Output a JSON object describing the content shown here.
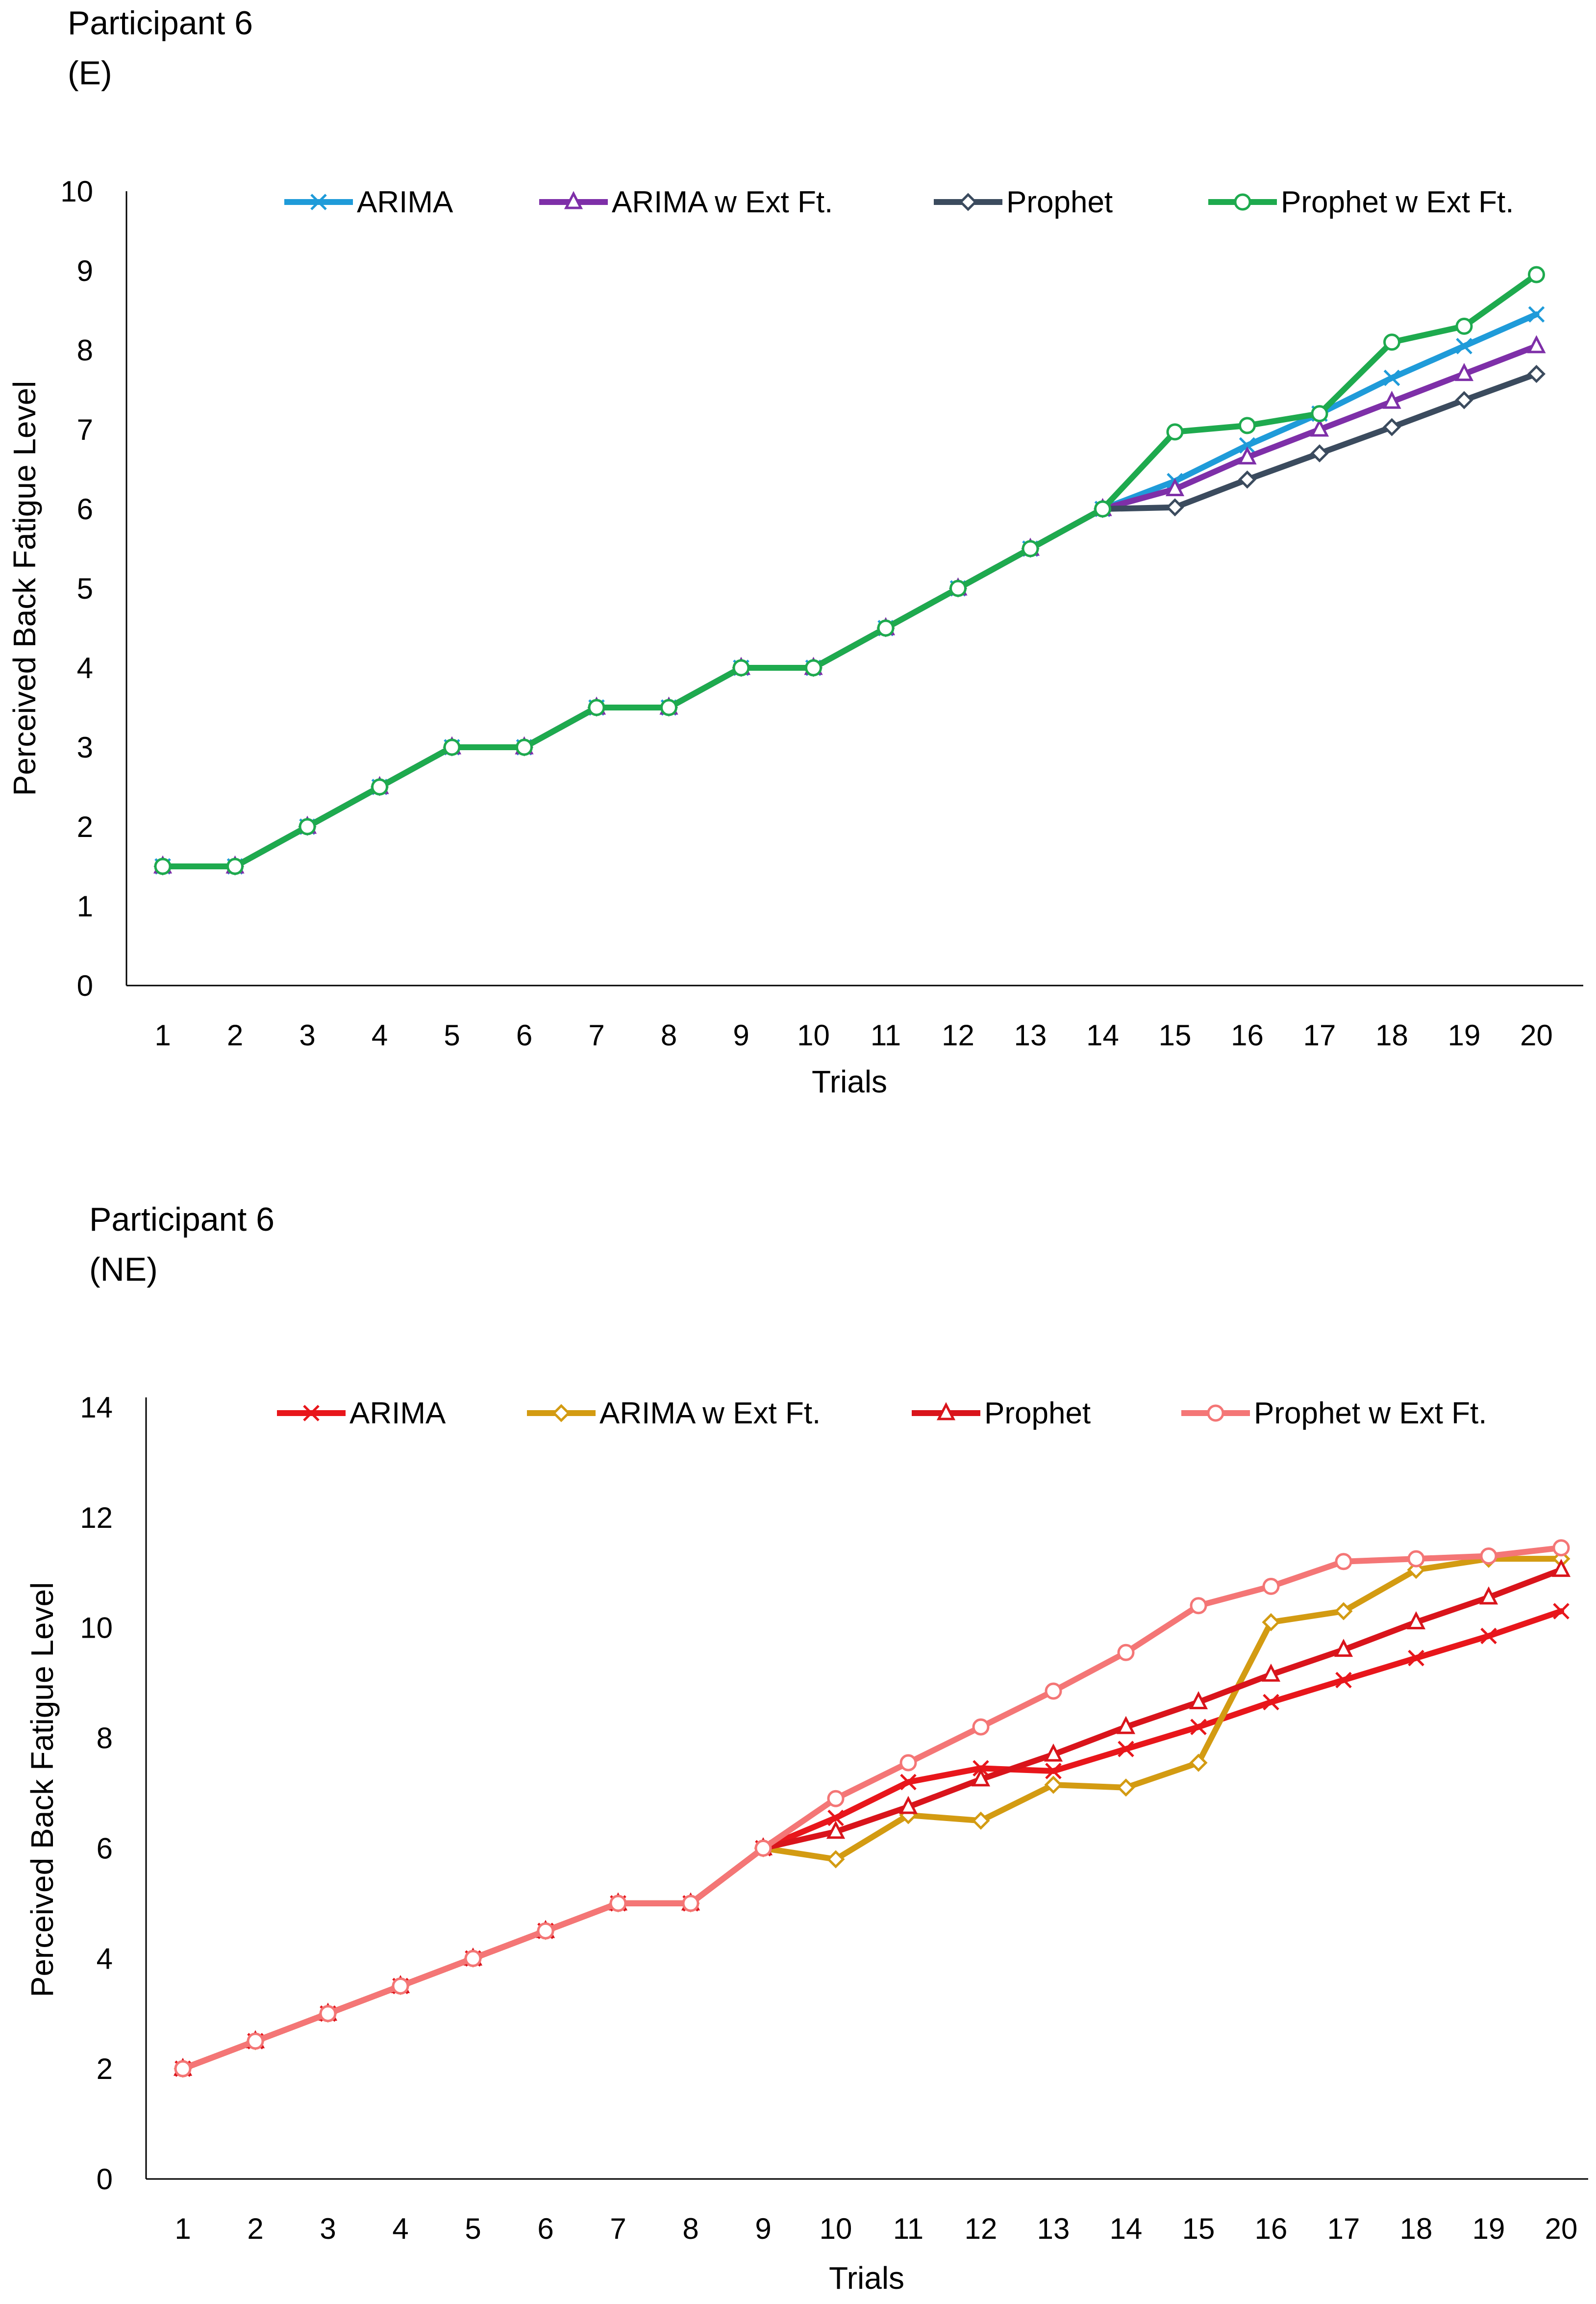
{
  "chart_data": [
    {
      "type": "line",
      "title": "Participant 6",
      "subtitle": "(E)",
      "xlabel": "Trials",
      "ylabel": "Perceived Back Fatigue Level",
      "ylim": [
        0,
        10
      ],
      "y_ticks": [
        "0",
        "1",
        "2",
        "3",
        "4",
        "5",
        "6",
        "7",
        "8",
        "9",
        "10"
      ],
      "grid": false,
      "legend_position": "top",
      "categories": [
        "1",
        "2",
        "3",
        "4",
        "5",
        "6",
        "7",
        "8",
        "9",
        "10",
        "11",
        "12",
        "13",
        "14",
        "15",
        "16",
        "17",
        "18",
        "19",
        "20"
      ],
      "series": [
        {
          "name": "ARIMA",
          "color": "#1F9BD9",
          "marker": "x",
          "values": [
            1.5,
            1.5,
            2,
            2.5,
            3,
            3,
            3.5,
            3.5,
            4,
            4,
            4.5,
            5,
            5.5,
            6,
            6.35,
            6.8,
            7.2,
            7.65,
            8.05,
            8.45
          ]
        },
        {
          "name": "ARIMA w Ext Ft.",
          "color": "#7E2FA8",
          "marker": "triangle",
          "values": [
            1.5,
            1.5,
            2,
            2.5,
            3,
            3,
            3.5,
            3.5,
            4,
            4,
            4.5,
            5,
            5.5,
            6,
            6.25,
            6.65,
            7.0,
            7.35,
            7.7,
            8.05
          ]
        },
        {
          "name": "Prophet",
          "color": "#3B4B5E",
          "marker": "diamond",
          "values": [
            1.5,
            1.5,
            2,
            2.5,
            3,
            3,
            3.5,
            3.5,
            4,
            4,
            4.5,
            5,
            5.5,
            6,
            6.02,
            6.37,
            6.7,
            7.03,
            7.37,
            7.7
          ]
        },
        {
          "name": "Prophet w Ext Ft.",
          "color": "#1EAA4E",
          "marker": "circle",
          "values": [
            1.5,
            1.5,
            2,
            2.5,
            3,
            3,
            3.5,
            3.5,
            4,
            4,
            4.5,
            5,
            5.5,
            6,
            6.97,
            7.05,
            7.2,
            8.1,
            8.3,
            8.95
          ]
        }
      ]
    },
    {
      "type": "line",
      "title": "Participant 6",
      "subtitle": "(NE)",
      "xlabel": "Trials",
      "ylabel": "Perceived Back Fatigue Level",
      "ylim": [
        0,
        14
      ],
      "y_ticks": [
        "0",
        "2",
        "4",
        "6",
        "8",
        "10",
        "12",
        "14"
      ],
      "grid": false,
      "legend_position": "top",
      "categories": [
        "1",
        "2",
        "3",
        "4",
        "5",
        "6",
        "7",
        "8",
        "9",
        "10",
        "11",
        "12",
        "13",
        "14",
        "15",
        "16",
        "17",
        "18",
        "19",
        "20"
      ],
      "series": [
        {
          "name": "ARIMA",
          "color": "#E8161B",
          "marker": "x",
          "values": [
            2,
            2.5,
            3,
            3.5,
            4,
            4.5,
            5,
            5,
            6,
            6.55,
            7.2,
            7.45,
            7.4,
            7.8,
            8.2,
            8.65,
            9.05,
            9.45,
            9.85,
            10.3
          ]
        },
        {
          "name": "ARIMA w Ext Ft.",
          "color": "#D39B12",
          "marker": "diamond",
          "values": [
            2,
            2.5,
            3,
            3.5,
            4,
            4.5,
            5,
            5,
            6,
            5.8,
            6.6,
            6.5,
            7.15,
            7.1,
            7.55,
            10.1,
            10.3,
            11.05,
            11.25,
            11.25
          ]
        },
        {
          "name": "Prophet",
          "color": "#D9141B",
          "marker": "triangle",
          "values": [
            2,
            2.5,
            3,
            3.5,
            4,
            4.5,
            5,
            5,
            6,
            6.3,
            6.75,
            7.25,
            7.7,
            8.2,
            8.65,
            9.15,
            9.6,
            10.1,
            10.55,
            11.05
          ]
        },
        {
          "name": "Prophet w Ext Ft.",
          "color": "#F47676",
          "marker": "circle",
          "values": [
            2,
            2.5,
            3,
            3.5,
            4,
            4.5,
            5,
            5,
            6,
            6.9,
            7.55,
            8.2,
            8.85,
            9.55,
            10.4,
            10.75,
            11.2,
            11.25,
            11.3,
            11.45
          ]
        }
      ]
    }
  ]
}
